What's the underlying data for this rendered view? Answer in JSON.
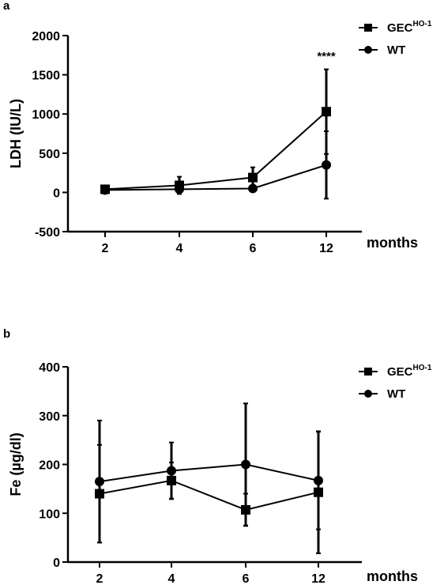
{
  "chart_data": [
    {
      "panel": "a",
      "type": "line",
      "ylabel": "LDH (IU/L)",
      "xlabel": "months",
      "categories": [
        "2",
        "4",
        "6",
        "12"
      ],
      "ylim": [
        -500,
        2000
      ],
      "yticks": [
        -500,
        0,
        500,
        1000,
        1500,
        2000
      ],
      "legend_position": "top-right",
      "grid": false,
      "series": [
        {
          "name": "GEC",
          "name_sup": "HO-1",
          "marker": "square",
          "values": [
            40,
            90,
            190,
            1030
          ],
          "errors": [
            15,
            110,
            130,
            540
          ]
        },
        {
          "name": "WT",
          "marker": "circle",
          "values": [
            30,
            40,
            50,
            350
          ],
          "errors": [
            12,
            45,
            25,
            430
          ]
        }
      ],
      "annotations": [
        {
          "category": "12",
          "text": "****",
          "y": 1690
        }
      ]
    },
    {
      "panel": "b",
      "type": "line",
      "ylabel": "Fe (µg/dl)",
      "xlabel": "months",
      "categories": [
        "2",
        "4",
        "6",
        "12"
      ],
      "ylim": [
        0,
        400
      ],
      "yticks": [
        0,
        100,
        200,
        300,
        400
      ],
      "legend_position": "top-right",
      "grid": false,
      "series": [
        {
          "name": "GEC",
          "name_sup": "HO-1",
          "marker": "square",
          "values": [
            140,
            167,
            107,
            143
          ],
          "errors": [
            100,
            37,
            33,
            125
          ]
        },
        {
          "name": "WT",
          "marker": "circle",
          "values": [
            165,
            187,
            200,
            167
          ],
          "errors": [
            125,
            58,
            125,
            100
          ]
        }
      ],
      "annotations": []
    }
  ]
}
